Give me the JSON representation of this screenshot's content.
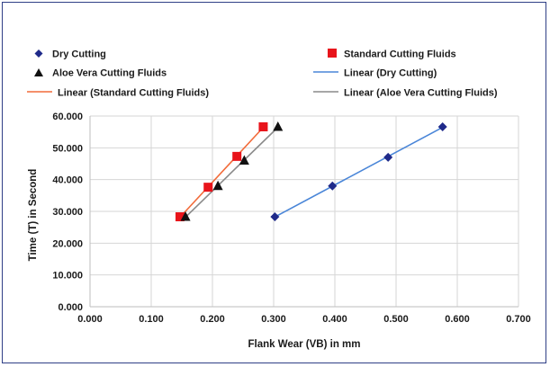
{
  "chart_data": {
    "type": "scatter",
    "xlabel": "Flank Wear (VB) in mm",
    "ylabel": "Time (T) in Second",
    "xlim": [
      0,
      0.7
    ],
    "ylim": [
      0,
      60
    ],
    "x_ticks": [
      "0.000",
      "0.100",
      "0.200",
      "0.300",
      "0.400",
      "0.500",
      "0.600",
      "0.700"
    ],
    "y_ticks": [
      "0.000",
      "10.000",
      "20.000",
      "30.000",
      "40.000",
      "50.000",
      "60.000"
    ],
    "grid": true,
    "legend_position": "top",
    "series": [
      {
        "name": "Dry Cutting",
        "marker": "diamond",
        "color": "#1f2a8a",
        "x": [
          0.302,
          0.396,
          0.487,
          0.576
        ],
        "y": [
          28.3,
          38.0,
          47.0,
          56.6
        ]
      },
      {
        "name": "Standard Cutting Fluids",
        "marker": "square",
        "color": "#e8141b",
        "x": [
          0.147,
          0.193,
          0.24,
          0.283
        ],
        "y": [
          28.3,
          37.6,
          47.3,
          56.6
        ]
      },
      {
        "name": "Aloe Vera Cutting Fluids",
        "marker": "triangle",
        "color": "#111111",
        "x": [
          0.156,
          0.209,
          0.252,
          0.307
        ],
        "y": [
          28.3,
          38.0,
          46.0,
          56.6
        ]
      }
    ],
    "trendlines": [
      {
        "name": "Linear (Dry Cutting)",
        "series": 0,
        "color": "#4a86d8"
      },
      {
        "name": "Linear (Standard Cutting Fluids)",
        "series": 1,
        "color": "#f26b3a"
      },
      {
        "name": "Linear (Aloe Vera Cutting Fluids)",
        "series": 2,
        "color": "#8a8a8a"
      }
    ]
  }
}
